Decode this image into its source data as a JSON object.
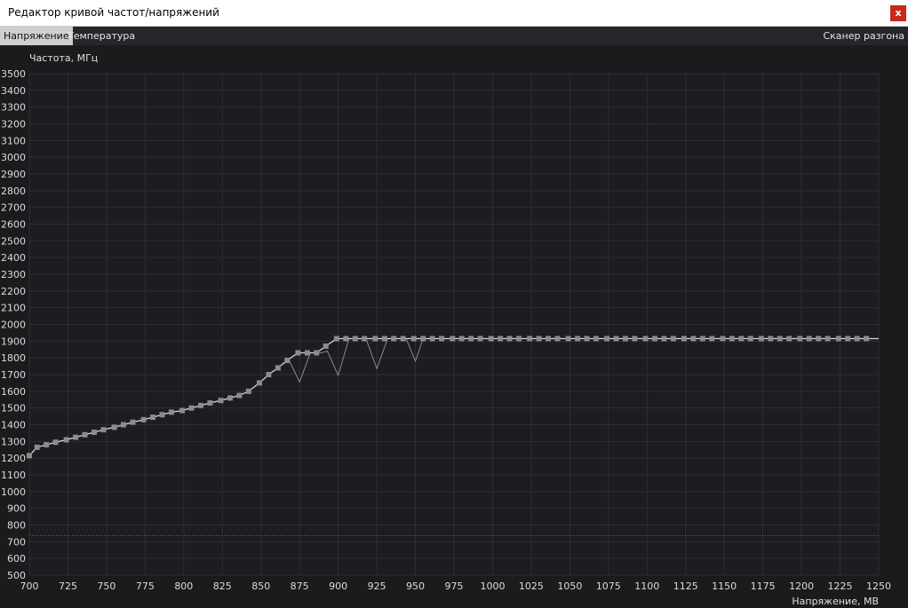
{
  "window": {
    "title": "Редактор кривой частот/напряжений",
    "close_label": "x"
  },
  "tabs": [
    {
      "label": "Напряжение",
      "active": true
    },
    {
      "label": "Температура",
      "active": false
    }
  ],
  "scanner_label": "Сканер разгона",
  "colors": {
    "background": "#1b1b1e",
    "grid": "#2e2e33",
    "curve": "#d8d8d8",
    "marker": "#8c8c8c",
    "active_tab": "#cfcfcf",
    "close": "#c42b1c"
  },
  "chart_data": {
    "type": "line",
    "ylabel": "Частота, МГц",
    "xlabel": "Напряжение, МВ",
    "xlim": [
      700,
      1250
    ],
    "ylim": [
      500,
      3500
    ],
    "xticks": [
      700,
      725,
      750,
      775,
      800,
      825,
      850,
      875,
      900,
      925,
      950,
      975,
      1000,
      1025,
      1050,
      1075,
      1100,
      1125,
      1150,
      1175,
      1200,
      1225,
      1250
    ],
    "yticks": [
      500,
      600,
      700,
      800,
      900,
      1000,
      1100,
      1200,
      1300,
      1400,
      1500,
      1600,
      1700,
      1800,
      1900,
      2000,
      2100,
      2200,
      2300,
      2400,
      2500,
      2600,
      2700,
      2800,
      2900,
      3000,
      3100,
      3200,
      3300,
      3400,
      3500
    ],
    "grid": true,
    "reference_line": 736,
    "series": [
      {
        "points": [
          [
            700,
            1215
          ],
          [
            705,
            1265
          ],
          [
            711,
            1280
          ],
          [
            717,
            1295
          ],
          [
            724,
            1310
          ],
          [
            730,
            1325
          ],
          [
            736,
            1340
          ],
          [
            742,
            1355
          ],
          [
            748,
            1370
          ],
          [
            755,
            1385
          ],
          [
            761,
            1400
          ],
          [
            767,
            1415
          ],
          [
            774,
            1430
          ],
          [
            780,
            1445
          ],
          [
            786,
            1460
          ],
          [
            792,
            1475
          ],
          [
            799,
            1485
          ],
          [
            805,
            1500
          ],
          [
            811,
            1515
          ],
          [
            817,
            1530
          ],
          [
            824,
            1545
          ],
          [
            830,
            1560
          ],
          [
            836,
            1575
          ],
          [
            842,
            1600
          ],
          [
            849,
            1650
          ],
          [
            855,
            1700
          ],
          [
            861,
            1740
          ],
          [
            867,
            1785
          ],
          [
            874,
            1830
          ],
          [
            880,
            1830
          ],
          [
            886,
            1830
          ],
          [
            892,
            1870
          ],
          [
            899,
            1915
          ],
          [
            905,
            1915
          ],
          [
            911,
            1915
          ],
          [
            917,
            1915
          ],
          [
            924,
            1915
          ],
          [
            930,
            1915
          ],
          [
            936,
            1915
          ],
          [
            942,
            1915
          ],
          [
            949,
            1915
          ],
          [
            955,
            1915
          ],
          [
            961,
            1915
          ],
          [
            967,
            1915
          ],
          [
            974,
            1915
          ],
          [
            980,
            1915
          ],
          [
            986,
            1915
          ],
          [
            992,
            1915
          ],
          [
            999,
            1915
          ],
          [
            1005,
            1915
          ],
          [
            1011,
            1915
          ],
          [
            1017,
            1915
          ],
          [
            1024,
            1915
          ],
          [
            1030,
            1915
          ],
          [
            1036,
            1915
          ],
          [
            1042,
            1915
          ],
          [
            1049,
            1915
          ],
          [
            1055,
            1915
          ],
          [
            1061,
            1915
          ],
          [
            1067,
            1915
          ],
          [
            1074,
            1915
          ],
          [
            1080,
            1915
          ],
          [
            1086,
            1915
          ],
          [
            1092,
            1915
          ],
          [
            1099,
            1915
          ],
          [
            1105,
            1915
          ],
          [
            1111,
            1915
          ],
          [
            1117,
            1915
          ],
          [
            1124,
            1915
          ],
          [
            1130,
            1915
          ],
          [
            1136,
            1915
          ],
          [
            1142,
            1915
          ],
          [
            1149,
            1915
          ],
          [
            1155,
            1915
          ],
          [
            1161,
            1915
          ],
          [
            1167,
            1915
          ],
          [
            1174,
            1915
          ],
          [
            1180,
            1915
          ],
          [
            1186,
            1915
          ],
          [
            1192,
            1915
          ],
          [
            1199,
            1915
          ],
          [
            1205,
            1915
          ],
          [
            1211,
            1915
          ],
          [
            1217,
            1915
          ],
          [
            1224,
            1915
          ],
          [
            1230,
            1915
          ],
          [
            1236,
            1915
          ],
          [
            1242,
            1915
          ],
          [
            1250,
            1915
          ]
        ]
      },
      {
        "points": [
          [
            861,
            1740
          ],
          [
            868,
            1790
          ],
          [
            875,
            1655
          ],
          [
            882,
            1830
          ],
          [
            889,
            1830
          ],
          [
            893,
            1840
          ],
          [
            900,
            1695
          ],
          [
            907,
            1915
          ],
          [
            918,
            1915
          ],
          [
            925,
            1735
          ],
          [
            932,
            1915
          ],
          [
            938,
            1915
          ],
          [
            944,
            1915
          ],
          [
            950,
            1780
          ],
          [
            955,
            1915
          ]
        ]
      }
    ]
  }
}
